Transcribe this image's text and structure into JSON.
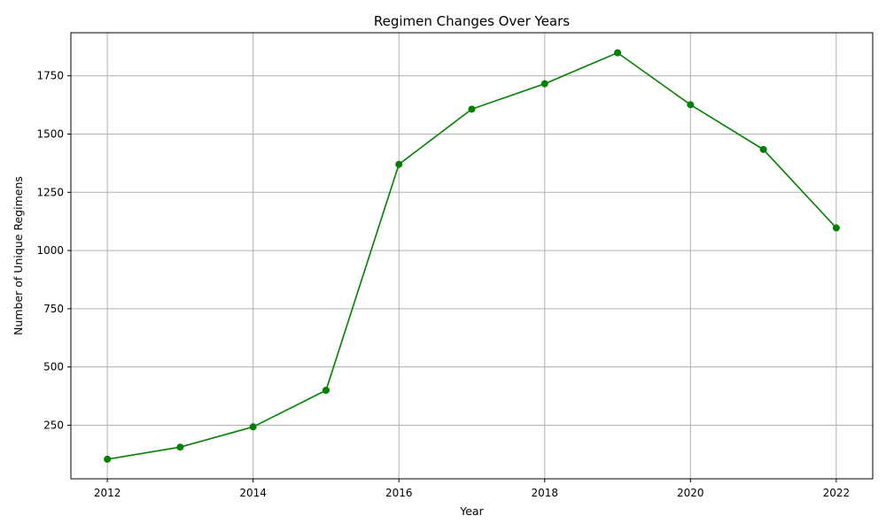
{
  "chart_data": {
    "type": "line",
    "title": "Regimen Changes Over Years",
    "xlabel": "Year",
    "ylabel": "Number of Unique Regimens",
    "x": [
      2012,
      2013,
      2014,
      2015,
      2016,
      2017,
      2018,
      2019,
      2020,
      2021,
      2022
    ],
    "series": [
      {
        "values": [
          104,
          156,
          243,
          400,
          1370,
          1607,
          1716,
          1849,
          1626,
          1434,
          1097
        ],
        "color": "#008000",
        "marker": "circle"
      }
    ],
    "xlim": [
      2011.5,
      2022.5
    ],
    "ylim": [
      20,
      1935
    ],
    "xticks": [
      2012,
      2014,
      2016,
      2018,
      2020,
      2022
    ],
    "yticks": [
      250,
      500,
      750,
      1000,
      1250,
      1500,
      1750
    ],
    "grid": true
  }
}
